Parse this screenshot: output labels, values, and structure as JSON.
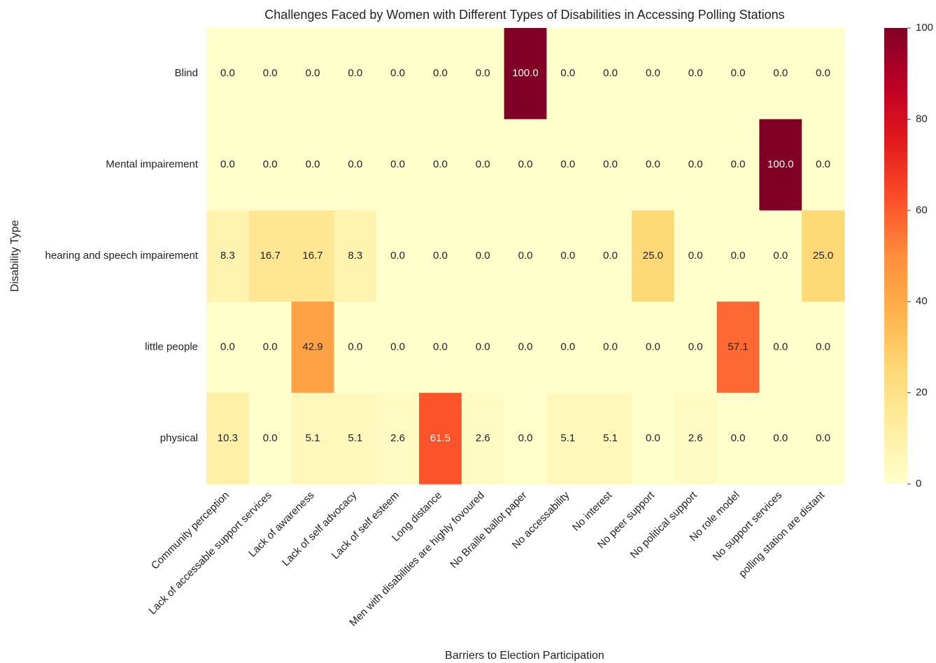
{
  "chart_data": {
    "type": "heatmap",
    "title": "Challenges Faced by Women with Different Types of Disabilities in Accessing Polling Stations",
    "xlabel": "Barriers to Election Participation",
    "ylabel": "Disability Type",
    "x": [
      "Community perception",
      "Lack of accessable support services",
      "Lack of awareness",
      "Lack of self advocacy",
      "Lack of self esteem",
      "Long distance",
      "Men with disabilities are highly fovoured",
      "No Braille ballot paper",
      "No accessability",
      "No interest",
      "No peer support",
      "No political support",
      "No role model",
      "No support services",
      "polling station are distant"
    ],
    "y": [
      "Blind",
      "Mental impairement",
      "hearing and speech impairement",
      "little people",
      "physical"
    ],
    "values": [
      [
        0,
        0,
        0,
        0,
        0,
        0,
        0,
        100,
        0,
        0,
        0,
        0,
        0,
        0,
        0
      ],
      [
        0,
        0,
        0,
        0,
        0,
        0,
        0,
        0,
        0,
        0,
        0,
        0,
        0,
        100,
        0
      ],
      [
        8.3,
        16.7,
        16.7,
        8.3,
        0,
        0,
        0,
        0,
        0,
        0,
        25,
        0,
        0,
        0,
        25
      ],
      [
        0,
        0,
        42.9,
        0,
        0,
        0,
        0,
        0,
        0,
        0,
        0,
        0,
        57.1,
        0,
        0
      ],
      [
        10.3,
        0,
        5.1,
        5.1,
        2.6,
        61.5,
        2.6,
        0,
        5.1,
        5.1,
        0,
        2.6,
        0,
        0,
        0
      ]
    ],
    "value_labels": [
      [
        "0.0",
        "0.0",
        "0.0",
        "0.0",
        "0.0",
        "0.0",
        "0.0",
        "100.0",
        "0.0",
        "0.0",
        "0.0",
        "0.0",
        "0.0",
        "0.0",
        "0.0"
      ],
      [
        "0.0",
        "0.0",
        "0.0",
        "0.0",
        "0.0",
        "0.0",
        "0.0",
        "0.0",
        "0.0",
        "0.0",
        "0.0",
        "0.0",
        "0.0",
        "100.0",
        "0.0"
      ],
      [
        "8.3",
        "16.7",
        "16.7",
        "8.3",
        "0.0",
        "0.0",
        "0.0",
        "0.0",
        "0.0",
        "0.0",
        "25.0",
        "0.0",
        "0.0",
        "0.0",
        "25.0"
      ],
      [
        "0.0",
        "0.0",
        "42.9",
        "0.0",
        "0.0",
        "0.0",
        "0.0",
        "0.0",
        "0.0",
        "0.0",
        "0.0",
        "0.0",
        "57.1",
        "0.0",
        "0.0"
      ],
      [
        "10.3",
        "0.0",
        "5.1",
        "5.1",
        "2.6",
        "61.5",
        "2.6",
        "0.0",
        "5.1",
        "5.1",
        "0.0",
        "2.6",
        "0.0",
        "0.0",
        "0.0"
      ]
    ],
    "colormap": "YlOrRd",
    "zlim": [
      0,
      100
    ],
    "zticks": [
      0,
      20,
      40,
      60,
      80,
      100
    ]
  }
}
